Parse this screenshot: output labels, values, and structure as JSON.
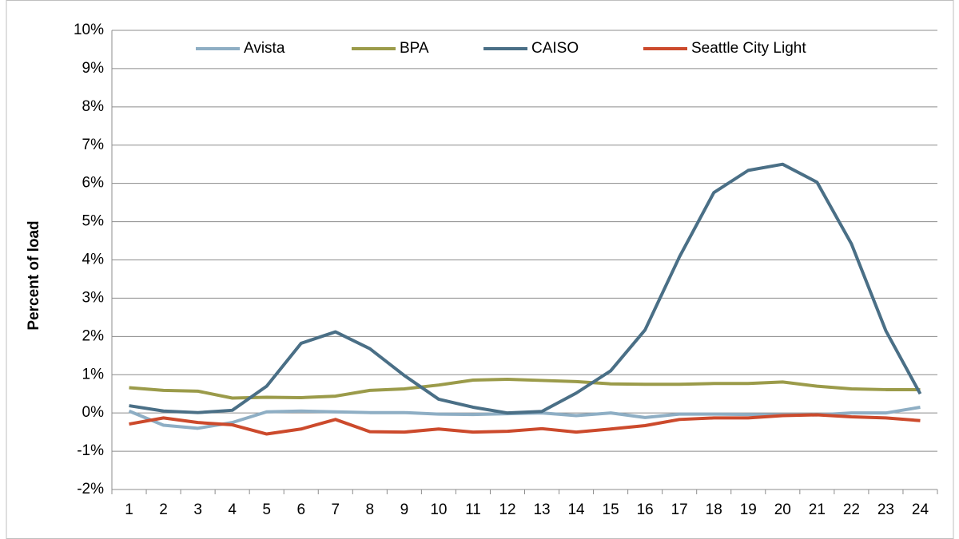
{
  "chart_data": {
    "type": "line",
    "ylabel": "Percent of load",
    "categories": [
      "1",
      "2",
      "3",
      "4",
      "5",
      "6",
      "7",
      "8",
      "9",
      "10",
      "11",
      "12",
      "13",
      "14",
      "15",
      "16",
      "17",
      "18",
      "19",
      "20",
      "21",
      "22",
      "23",
      "24"
    ],
    "series": [
      {
        "name": "Avista",
        "color": "#8eaec4",
        "values": [
          0.05,
          -0.32,
          -0.4,
          -0.25,
          0.03,
          0.05,
          0.03,
          0.01,
          0.01,
          -0.03,
          -0.04,
          -0.02,
          0.0,
          -0.07,
          0.0,
          -0.12,
          -0.03,
          -0.03,
          -0.04,
          -0.05,
          -0.05,
          0.0,
          0.0,
          0.15
        ]
      },
      {
        "name": "BPA",
        "color": "#9b9b4a",
        "values": [
          0.66,
          0.59,
          0.57,
          0.39,
          0.41,
          0.4,
          0.44,
          0.59,
          0.63,
          0.73,
          0.86,
          0.88,
          0.85,
          0.82,
          0.76,
          0.75,
          0.75,
          0.77,
          0.77,
          0.81,
          0.7,
          0.63,
          0.61,
          0.61
        ]
      },
      {
        "name": "CAISO",
        "color": "#4a6f86",
        "values": [
          0.19,
          0.05,
          0.01,
          0.07,
          0.7,
          1.82,
          2.12,
          1.68,
          0.98,
          0.36,
          0.15,
          0.0,
          0.04,
          0.52,
          1.1,
          2.17,
          4.08,
          5.76,
          6.34,
          6.5,
          6.03,
          4.42,
          2.15,
          0.5
        ]
      },
      {
        "name": "Seattle City Light",
        "color": "#cc4a2c",
        "values": [
          -0.29,
          -0.13,
          -0.25,
          -0.31,
          -0.55,
          -0.42,
          -0.17,
          -0.49,
          -0.5,
          -0.42,
          -0.5,
          -0.48,
          -0.41,
          -0.5,
          -0.42,
          -0.33,
          -0.17,
          -0.13,
          -0.13,
          -0.07,
          -0.05,
          -0.1,
          -0.13,
          -0.2
        ]
      }
    ],
    "ylim": [
      -2,
      10
    ],
    "yticks": [
      {
        "value": -2,
        "label": "-2%"
      },
      {
        "value": -1,
        "label": "-1%"
      },
      {
        "value": 0,
        "label": "0%"
      },
      {
        "value": 1,
        "label": "1%"
      },
      {
        "value": 2,
        "label": "2%"
      },
      {
        "value": 3,
        "label": "3%"
      },
      {
        "value": 4,
        "label": "4%"
      },
      {
        "value": 5,
        "label": "5%"
      },
      {
        "value": 6,
        "label": "6%"
      },
      {
        "value": 7,
        "label": "7%"
      },
      {
        "value": 8,
        "label": "8%"
      },
      {
        "value": 9,
        "label": "9%"
      },
      {
        "value": 10,
        "label": "10%"
      }
    ],
    "grid": true,
    "legend": "top"
  }
}
